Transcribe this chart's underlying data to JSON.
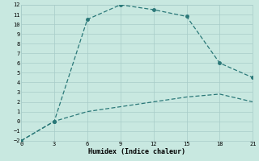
{
  "xlabel": "Humidex (Indice chaleur)",
  "bg_color": "#c8e8e0",
  "grid_color": "#a8ccc8",
  "line_color": "#2a7878",
  "line1_x": [
    0,
    3,
    6,
    9,
    12,
    15,
    18,
    21
  ],
  "line1_y": [
    -2,
    0,
    10.5,
    12,
    11.5,
    10.8,
    6,
    4.5
  ],
  "line2_x": [
    0,
    3,
    6,
    9,
    12,
    15,
    18,
    21
  ],
  "line2_y": [
    -2,
    0,
    1.0,
    1.5,
    2.0,
    2.5,
    2.8,
    2.0
  ],
  "xlim": [
    0,
    21
  ],
  "ylim": [
    -2,
    12
  ],
  "xticks": [
    0,
    3,
    6,
    9,
    12,
    15,
    18,
    21
  ],
  "yticks": [
    -2,
    -1,
    0,
    1,
    2,
    3,
    4,
    5,
    6,
    7,
    8,
    9,
    10,
    11,
    12
  ],
  "marker1_indices": [
    0,
    1,
    2,
    3,
    4,
    5,
    6,
    7
  ],
  "marker2_indices": [
    1
  ]
}
